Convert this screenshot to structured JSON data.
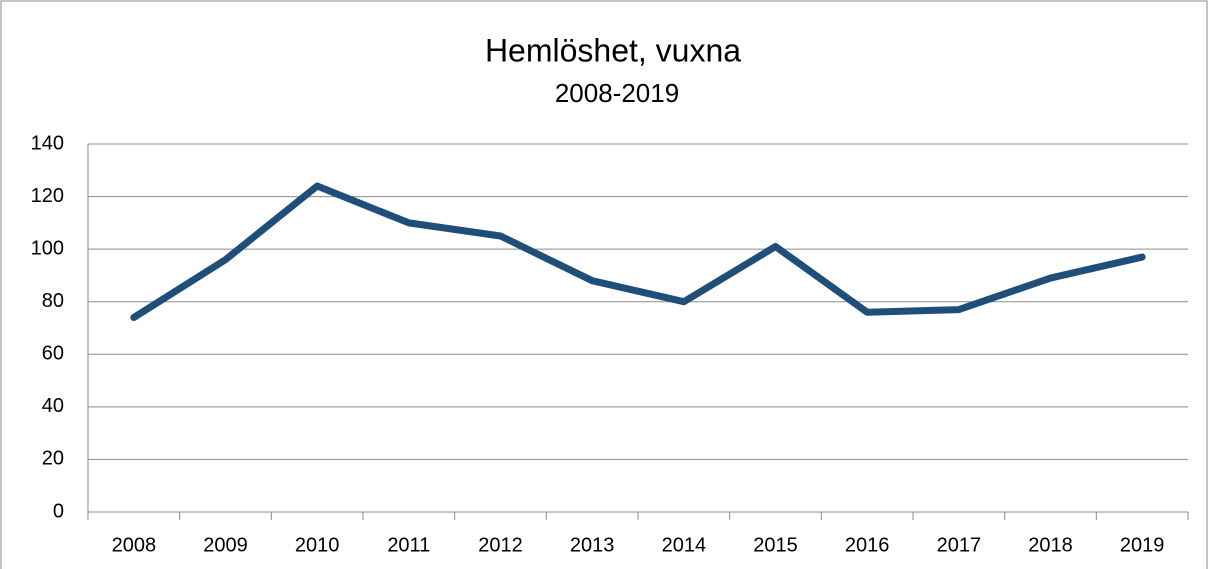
{
  "chart_data": {
    "type": "line",
    "title": "Hemlöshet, vuxna",
    "subtitle": "2008-2019",
    "categories": [
      "2008",
      "2009",
      "2010",
      "2011",
      "2012",
      "2013",
      "2014",
      "2015",
      "2016",
      "2017",
      "2018",
      "2019"
    ],
    "values": [
      74,
      96,
      124,
      110,
      105,
      88,
      80,
      101,
      76,
      77,
      89,
      97
    ],
    "color": "#1f4e79",
    "ylim": [
      0,
      140
    ],
    "yticks": [
      0,
      20,
      40,
      60,
      80,
      100,
      120,
      140
    ],
    "grid": true
  }
}
